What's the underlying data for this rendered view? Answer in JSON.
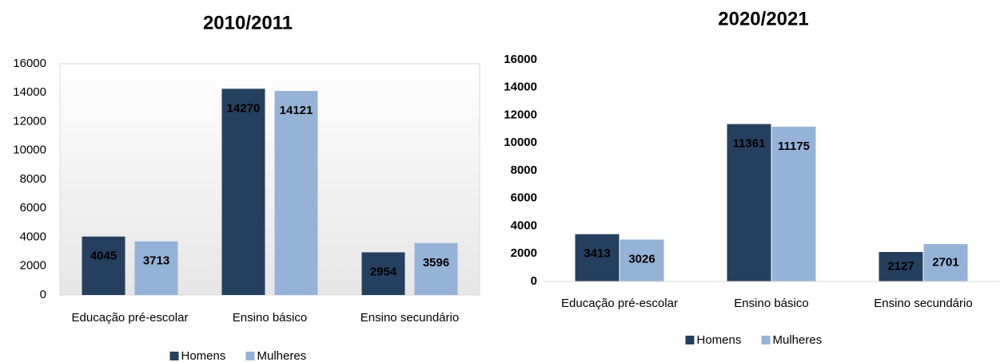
{
  "chart_data": [
    {
      "type": "bar",
      "title": "2010/2011",
      "categories": [
        "Educação pré-escolar",
        "Ensino básico",
        "Ensino secundário"
      ],
      "series": [
        {
          "name": "Homens",
          "color": "#253f5f",
          "values": [
            4045,
            14270,
            2954
          ]
        },
        {
          "name": "Mulheres",
          "color": "#95b3d7",
          "values": [
            3713,
            14121,
            3596
          ]
        }
      ],
      "ylim": [
        0,
        16000
      ],
      "yticks": [
        0,
        2000,
        4000,
        6000,
        8000,
        10000,
        12000,
        14000,
        16000
      ],
      "legend": "bottom"
    },
    {
      "type": "bar",
      "title": "2020/2021",
      "categories": [
        "Educação pré-escolar",
        "Ensino básico",
        "Ensino secundário"
      ],
      "series": [
        {
          "name": "Homens",
          "color": "#253f5f",
          "values": [
            3413,
            11361,
            2127
          ]
        },
        {
          "name": "Mulheres",
          "color": "#95b3d7",
          "values": [
            3026,
            11175,
            2701
          ]
        }
      ],
      "ylim": [
        0,
        16000
      ],
      "yticks": [
        0,
        2000,
        4000,
        6000,
        8000,
        10000,
        12000,
        14000,
        16000
      ],
      "legend": "bottom"
    }
  ]
}
